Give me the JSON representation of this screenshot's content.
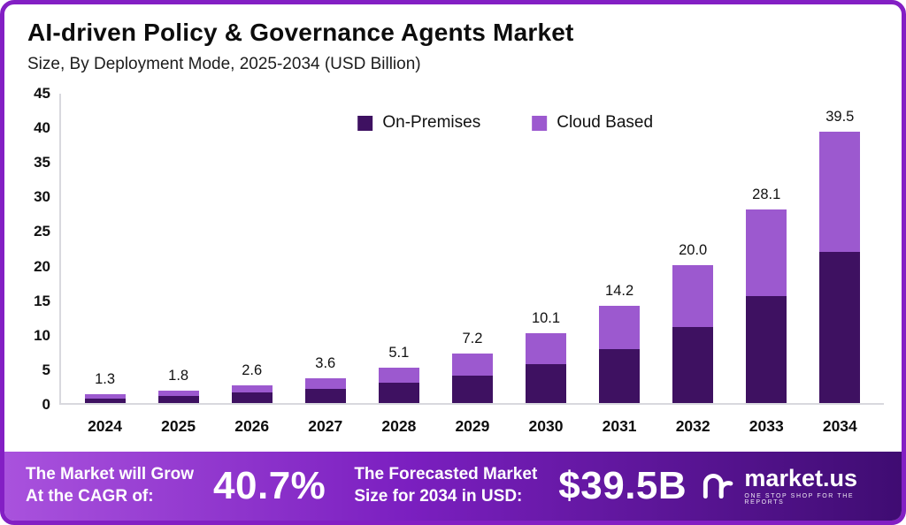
{
  "header": {
    "title": "AI-driven Policy & Governance Agents Market",
    "subtitle": "Size, By Deployment Mode, 2025-2034 (USD Billion)"
  },
  "chart_data": {
    "type": "bar",
    "stacked": true,
    "title": "AI-driven Policy & Governance Agents Market",
    "subtitle": "Size, By Deployment Mode, 2025-2034 (USD Billion)",
    "xlabel": "",
    "ylabel": "USD Billion",
    "categories": [
      "2024",
      "2025",
      "2026",
      "2027",
      "2028",
      "2029",
      "2030",
      "2031",
      "2032",
      "2033",
      "2034"
    ],
    "series": [
      {
        "name": "On-Premises",
        "color": "#3e1161",
        "values": [
          0.7,
          1.0,
          1.5,
          2.0,
          2.9,
          4.0,
          5.6,
          7.9,
          11.1,
          15.6,
          22.0
        ]
      },
      {
        "name": "Cloud Based",
        "color": "#9c59cf",
        "values": [
          0.6,
          0.8,
          1.1,
          1.6,
          2.2,
          3.2,
          4.5,
          6.3,
          8.9,
          12.5,
          17.5
        ]
      }
    ],
    "totals": [
      1.3,
      1.8,
      2.6,
      3.6,
      5.1,
      7.2,
      10.1,
      14.2,
      20.0,
      28.1,
      39.5
    ],
    "value_labels": [
      "1.3",
      "1.8",
      "2.6",
      "3.6",
      "5.1",
      "7.2",
      "10.1",
      "14.2",
      "20.0",
      "28.1",
      "39.5"
    ],
    "ylim": [
      0,
      45
    ],
    "yticks": [
      0,
      5,
      10,
      15,
      20,
      25,
      30,
      35,
      40,
      45
    ],
    "grid": false,
    "legend_position": "top-center"
  },
  "banner": {
    "cagr_label_line1": "The Market will Grow",
    "cagr_label_line2": "At the CAGR of:",
    "cagr_value": "40.7%",
    "forecast_label_line1": "The Forecasted Market",
    "forecast_label_line2": "Size for 2034 in USD:",
    "forecast_value": "$39.5B",
    "brand": "market.us",
    "brand_tagline": "ONE STOP SHOP FOR THE REPORTS"
  },
  "colors": {
    "frame_border": "#831fc4",
    "on_premises": "#3e1161",
    "cloud_based": "#9c59cf",
    "banner_gradient_left": "#a952dd",
    "banner_gradient_mid": "#7b1fc0",
    "banner_gradient_right": "#3f0c72",
    "axis_line": "#d8d8de"
  }
}
